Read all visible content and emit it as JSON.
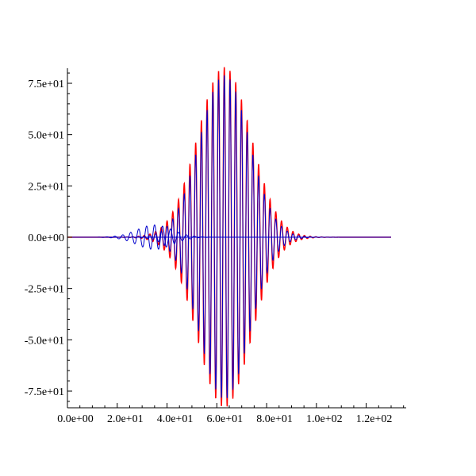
{
  "chart_data": {
    "type": "line",
    "title": "",
    "xlabel": "",
    "ylabel": "",
    "xlim": [
      0,
      130
    ],
    "ylim": [
      -82,
      82
    ],
    "grid": false,
    "legend": "none",
    "x_ticks": [
      {
        "value": 0,
        "label": "0.0e+00"
      },
      {
        "value": 20,
        "label": "2.0e+01"
      },
      {
        "value": 40,
        "label": "4.0e+01"
      },
      {
        "value": 60,
        "label": "6.0e+01"
      },
      {
        "value": 80,
        "label": "8.0e+01"
      },
      {
        "value": 100,
        "label": "1.0e+02"
      },
      {
        "value": 120,
        "label": "1.2e+02"
      }
    ],
    "y_ticks": [
      {
        "value": 75,
        "label": "7.5e+01"
      },
      {
        "value": 50,
        "label": "5.0e+01"
      },
      {
        "value": 25,
        "label": "2.5e+01"
      },
      {
        "value": 0,
        "label": "0.0e+00"
      },
      {
        "value": -25,
        "label": "-2.5e+01"
      },
      {
        "value": -50,
        "label": "-5.0e+01"
      },
      {
        "value": -75,
        "label": "-7.5e+01"
      }
    ],
    "series": [
      {
        "color": "#ff0000",
        "envelope": {
          "center": 63,
          "width": 15,
          "amplitude": 83,
          "period": 2.3,
          "x": [
            0,
            130
          ]
        }
      },
      {
        "color": "#0000cc",
        "envelope": {
          "center": 63,
          "width": 14,
          "amplitude": 79,
          "period": 2.3,
          "x": [
            0,
            130
          ]
        }
      },
      {
        "color": "#0000cc",
        "envelope": {
          "center": 35,
          "width": 10,
          "amplitude": 6,
          "period": 3.2,
          "x": [
            0,
            130
          ]
        }
      }
    ]
  }
}
